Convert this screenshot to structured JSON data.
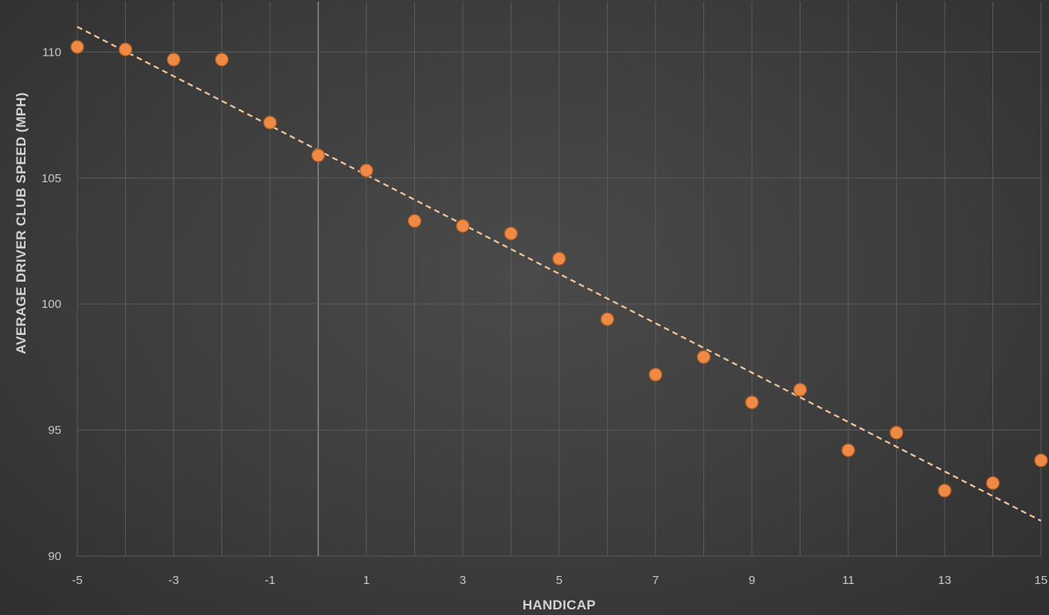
{
  "chart_data": {
    "type": "scatter",
    "title": "",
    "xlabel": "HANDICAP",
    "ylabel": "AVERAGE DRIVER CLUB SPEED (MPH)",
    "xlim": [
      -5,
      15
    ],
    "ylim": [
      90,
      112
    ],
    "x_ticks": [
      -5,
      -3,
      -1,
      1,
      3,
      5,
      7,
      9,
      11,
      13,
      15
    ],
    "y_ticks": [
      90,
      95,
      100,
      105,
      110
    ],
    "grid": true,
    "legend": "none",
    "colors": {
      "point": "#ee8a45",
      "point_stroke": "#a85a24",
      "trendline": "#f2c59a",
      "grid": "#5a5a5a",
      "zero_line": "#8a8a8a"
    },
    "series": [
      {
        "x": [
          -5,
          -4,
          -3,
          -2,
          -1,
          0,
          1,
          2,
          3,
          4,
          5,
          6,
          7,
          8,
          9,
          10,
          11,
          12,
          13,
          14,
          15
        ],
        "y": [
          110.2,
          110.1,
          109.7,
          109.7,
          107.2,
          105.9,
          105.3,
          103.3,
          103.1,
          102.8,
          101.8,
          99.4,
          97.2,
          97.9,
          96.1,
          96.6,
          94.2,
          94.9,
          92.6,
          92.9,
          93.8
        ]
      }
    ],
    "trendline": {
      "type": "linear",
      "style": "dashed",
      "x": [
        -5,
        15
      ],
      "y": [
        111.0,
        91.4
      ]
    }
  }
}
